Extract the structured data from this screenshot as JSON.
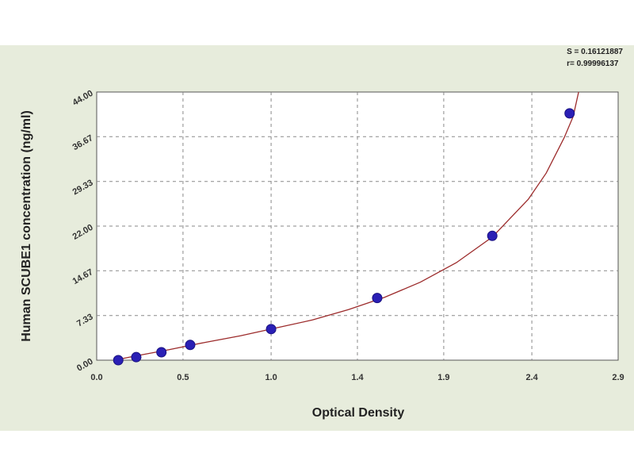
{
  "chart_data": {
    "type": "scatter",
    "title": "",
    "xlabel": "Optical Density",
    "ylabel": "Human SCUBE1 concentration (ng/ml)",
    "xlim": [
      0.0,
      2.9
    ],
    "ylim": [
      0.0,
      44.0
    ],
    "x_ticks": [
      "0.0",
      "0.5",
      "1.0",
      "1.4",
      "1.9",
      "2.4",
      "2.9"
    ],
    "x_tick_values": [
      0.0,
      0.48,
      0.97,
      1.45,
      1.93,
      2.42,
      2.9
    ],
    "y_ticks": [
      "0.00",
      "7.33",
      "14.67",
      "22.00",
      "29.33",
      "36.67",
      "44.00"
    ],
    "y_tick_values": [
      0.0,
      7.33,
      14.67,
      22.0,
      29.33,
      36.67,
      44.0
    ],
    "grid": true,
    "series": [
      {
        "points": [
          {
            "x": 0.12,
            "y": 0.0
          },
          {
            "x": 0.22,
            "y": 0.5
          },
          {
            "x": 0.36,
            "y": 1.3
          },
          {
            "x": 0.52,
            "y": 2.5
          },
          {
            "x": 0.97,
            "y": 5.1
          },
          {
            "x": 1.56,
            "y": 10.2
          },
          {
            "x": 2.2,
            "y": 20.4
          },
          {
            "x": 2.63,
            "y": 40.5
          }
        ]
      }
    ],
    "fit_curve": [
      [
        0.1,
        0.0
      ],
      [
        0.2,
        0.6
      ],
      [
        0.4,
        1.7
      ],
      [
        0.6,
        2.9
      ],
      [
        0.8,
        4.0
      ],
      [
        1.0,
        5.3
      ],
      [
        1.2,
        6.6
      ],
      [
        1.4,
        8.3
      ],
      [
        1.6,
        10.3
      ],
      [
        1.8,
        12.8
      ],
      [
        2.0,
        16.0
      ],
      [
        2.2,
        20.2
      ],
      [
        2.4,
        26.4
      ],
      [
        2.5,
        30.7
      ],
      [
        2.6,
        36.5
      ],
      [
        2.65,
        40.0
      ],
      [
        2.68,
        44.0
      ]
    ],
    "colors": {
      "point": "#2a1fb5",
      "curve": "#9c2b2b",
      "grid": "#8a8a8a"
    }
  },
  "stats": {
    "line1": "S = 0.16121887",
    "line2": "r= 0.99996137"
  }
}
